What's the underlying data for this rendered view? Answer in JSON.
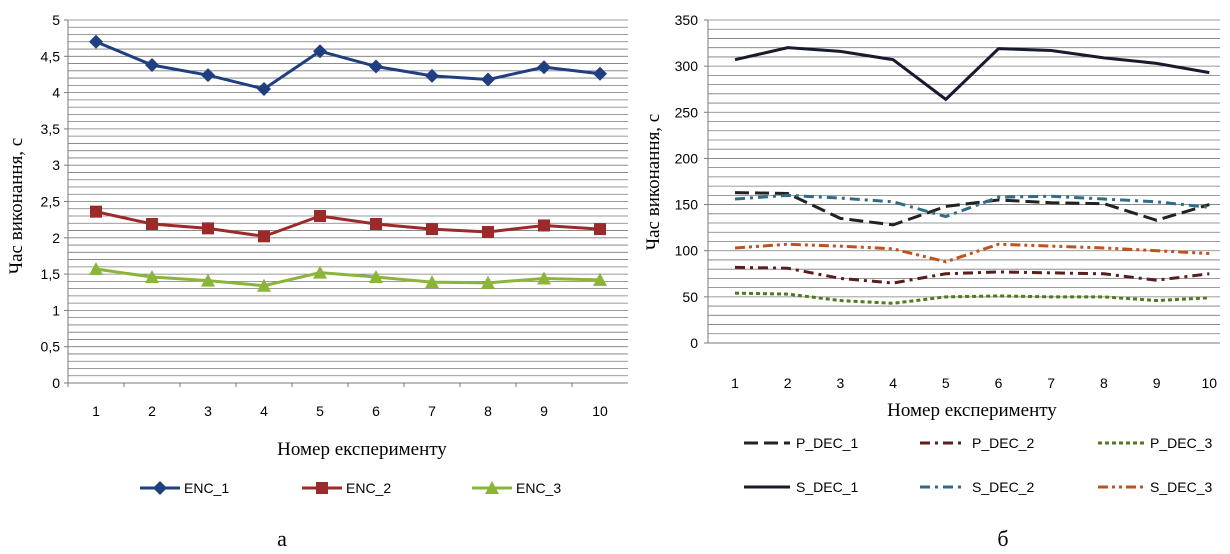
{
  "panel_labels": [
    "а",
    "б"
  ],
  "colors": {
    "ENC_1": "#1f3f80",
    "ENC_2": "#9b2b2b",
    "ENC_3": "#8ab43a",
    "P_DEC_1": "#222222",
    "P_DEC_2": "#5a1e1e",
    "P_DEC_3": "#4f7a1e",
    "S_DEC_1": "#1a1a2e",
    "S_DEC_2": "#2f6d86",
    "S_DEC_3": "#c0521e",
    "S_DEC_2_b": "#1f3f5a"
  },
  "chart_data": [
    {
      "type": "line",
      "title": "",
      "xlabel": "Номер експерименту",
      "ylabel": "Час виконання, с",
      "x": [
        1,
        2,
        3,
        4,
        5,
        6,
        7,
        8,
        9,
        10
      ],
      "ylim": [
        0,
        5
      ],
      "yticks": [
        "0",
        "0,5",
        "1",
        "1,5",
        "2",
        "2,5",
        "3",
        "3,5",
        "4",
        "4,5",
        "5"
      ],
      "grid": true,
      "legend_position": "bottom",
      "series": [
        {
          "name": "ENC_1",
          "marker": "diamond",
          "values": [
            4.7,
            4.38,
            4.24,
            4.05,
            4.57,
            4.36,
            4.23,
            4.18,
            4.35,
            4.26
          ]
        },
        {
          "name": "ENC_2",
          "marker": "square",
          "values": [
            2.36,
            2.19,
            2.13,
            2.02,
            2.3,
            2.19,
            2.12,
            2.08,
            2.17,
            2.12
          ]
        },
        {
          "name": "ENC_3",
          "marker": "triangle",
          "values": [
            1.57,
            1.46,
            1.41,
            1.34,
            1.52,
            1.46,
            1.39,
            1.38,
            1.44,
            1.42
          ]
        }
      ]
    },
    {
      "type": "line",
      "title": "",
      "xlabel": "Номер експерименту",
      "ylabel": "Час виконання, с",
      "x": [
        1,
        2,
        3,
        4,
        5,
        6,
        7,
        8,
        9,
        10
      ],
      "ylim": [
        0,
        350
      ],
      "yticks": [
        "0",
        "50",
        "100",
        "150",
        "200",
        "250",
        "300",
        "350"
      ],
      "grid": true,
      "legend_position": "bottom",
      "series": [
        {
          "name": "P_DEC_1",
          "dash": "long-dash",
          "values": [
            163,
            162,
            135,
            128,
            148,
            155,
            152,
            151,
            133,
            150
          ]
        },
        {
          "name": "P_DEC_2",
          "dash": "dash-dot",
          "values": [
            82,
            81,
            70,
            65,
            75,
            77,
            76,
            75,
            68,
            75
          ]
        },
        {
          "name": "P_DEC_3",
          "dash": "dot",
          "values": [
            54,
            53,
            46,
            43,
            50,
            51,
            50,
            50,
            46,
            49
          ]
        },
        {
          "name": "S_DEC_1",
          "dash": "solid",
          "values": [
            307,
            320,
            316,
            307,
            264,
            319,
            317,
            309,
            303,
            293
          ]
        },
        {
          "name": "S_DEC_2",
          "dash": "dash-dot",
          "values": [
            156,
            160,
            157,
            153,
            137,
            158,
            159,
            156,
            153,
            147
          ]
        },
        {
          "name": "S_DEC_3",
          "dash": "dash-dot-dot",
          "values": [
            103,
            107,
            105,
            102,
            88,
            107,
            105,
            103,
            100,
            97
          ]
        }
      ]
    }
  ]
}
